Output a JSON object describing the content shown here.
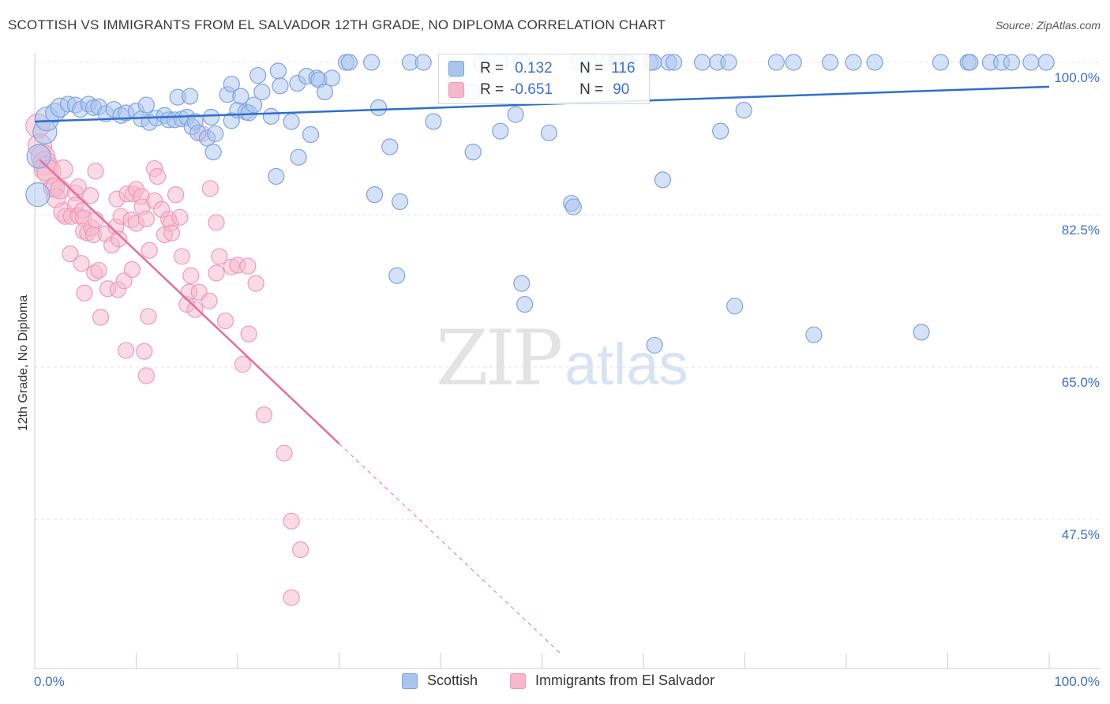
{
  "header": {
    "title": "SCOTTISH VS IMMIGRANTS FROM EL SALVADOR 12TH GRADE, NO DIPLOMA CORRELATION CHART",
    "source": "Source: ZipAtlas.com"
  },
  "watermark": {
    "zip": "ZIP",
    "atlas": "atlas"
  },
  "legend": {
    "r_label": "R =",
    "n_label": "N =",
    "scottish": {
      "r": "0.132",
      "n": "116"
    },
    "elsalvador": {
      "r": "-0.651",
      "n": "90"
    }
  },
  "colors": {
    "scottish_fill": "#a9c4ef",
    "scottish_stroke": "#7ea3e0",
    "scottish_line": "#2f6fca",
    "elsalvador_fill": "#f6b8cb",
    "elsalvador_stroke": "#ee9ab5",
    "elsalvador_line": "#e4709a",
    "axis_label": "#3b6fcf"
  },
  "chart_data": {
    "type": "scatter",
    "title": "SCOTTISH VS IMMIGRANTS FROM EL SALVADOR 12TH GRADE, NO DIPLOMA CORRELATION CHART",
    "xlabel": "",
    "ylabel": "12th Grade, No Diploma",
    "xlim": [
      0,
      100
    ],
    "ylim": [
      30,
      102
    ],
    "x_tick_labels": [
      "0.0%",
      "100.0%"
    ],
    "y_ticks": [
      100,
      82.5,
      65,
      47.5
    ],
    "y_tick_labels": [
      "100.0%",
      "82.5%",
      "65.0%",
      "47.5%"
    ],
    "grid": true,
    "legend_position": "top-center",
    "series": [
      {
        "name": "Scottish",
        "r": 0.132,
        "n": 116,
        "trend": {
          "x": [
            0,
            100
          ],
          "y": [
            93.2,
            97.2
          ]
        },
        "points": [
          [
            0.3,
            84.8
          ],
          [
            0.4,
            89.2
          ],
          [
            1.0,
            92.0
          ],
          [
            1.2,
            93.5
          ],
          [
            2.0,
            94.2
          ],
          [
            2.5,
            94.8
          ],
          [
            3.3,
            95.2
          ],
          [
            4.0,
            95.1
          ],
          [
            4.5,
            94.6
          ],
          [
            5.3,
            95.2
          ],
          [
            5.8,
            94.8
          ],
          [
            6.3,
            94.9
          ],
          [
            7.0,
            94.1
          ],
          [
            7.8,
            94.6
          ],
          [
            8.5,
            93.9
          ],
          [
            9.0,
            94.2
          ],
          [
            10.0,
            94.4
          ],
          [
            10.5,
            93.5
          ],
          [
            11.0,
            95.1
          ],
          [
            11.3,
            93.1
          ],
          [
            12.0,
            93.6
          ],
          [
            12.8,
            93.9
          ],
          [
            13.2,
            93.4
          ],
          [
            13.8,
            93.4
          ],
          [
            14.5,
            93.5
          ],
          [
            15.0,
            93.7
          ],
          [
            14.1,
            96.0
          ],
          [
            15.3,
            96.1
          ],
          [
            15.5,
            92.6
          ],
          [
            15.8,
            93.2
          ],
          [
            16.1,
            91.9
          ],
          [
            17.0,
            91.3
          ],
          [
            17.4,
            93.7
          ],
          [
            17.6,
            89.7
          ],
          [
            17.8,
            91.8
          ],
          [
            19.0,
            96.3
          ],
          [
            19.4,
            93.3
          ],
          [
            19.4,
            97.5
          ],
          [
            20.0,
            94.5
          ],
          [
            20.3,
            96.1
          ],
          [
            20.8,
            94.3
          ],
          [
            21.1,
            94.2
          ],
          [
            21.6,
            95.1
          ],
          [
            22.0,
            98.5
          ],
          [
            22.4,
            96.6
          ],
          [
            23.3,
            93.8
          ],
          [
            23.8,
            86.9
          ],
          [
            24.0,
            99.0
          ],
          [
            24.2,
            97.3
          ],
          [
            25.3,
            93.2
          ],
          [
            25.9,
            97.6
          ],
          [
            26.0,
            89.1
          ],
          [
            26.8,
            98.4
          ],
          [
            27.2,
            91.7
          ],
          [
            27.8,
            98.2
          ],
          [
            28.0,
            98.0
          ],
          [
            28.6,
            96.6
          ],
          [
            29.3,
            98.2
          ],
          [
            30.7,
            100.0
          ],
          [
            31.0,
            100.0
          ],
          [
            33.2,
            100.0
          ],
          [
            33.5,
            84.8
          ],
          [
            33.9,
            94.8
          ],
          [
            35.0,
            90.3
          ],
          [
            36.0,
            84.0
          ],
          [
            37.0,
            100.0
          ],
          [
            38.3,
            100.0
          ],
          [
            39.3,
            93.2
          ],
          [
            35.7,
            75.5
          ],
          [
            41.4,
            97.5
          ],
          [
            43.1,
            96.6
          ],
          [
            43.2,
            89.7
          ],
          [
            44.0,
            100.0
          ],
          [
            45.9,
            92.1
          ],
          [
            45.9,
            100.0
          ],
          [
            47.4,
            94.0
          ],
          [
            48.0,
            100.0
          ],
          [
            48.0,
            74.6
          ],
          [
            48.3,
            72.2
          ],
          [
            50.7,
            91.9
          ],
          [
            52.9,
            83.8
          ],
          [
            53.1,
            83.4
          ],
          [
            53.6,
            100.0
          ],
          [
            54.7,
            100.0
          ],
          [
            56.5,
            100.0
          ],
          [
            57.5,
            100.0
          ],
          [
            58.4,
            100.0
          ],
          [
            60.7,
            100.0
          ],
          [
            61.0,
            100.0
          ],
          [
            61.1,
            67.5
          ],
          [
            61.9,
            86.5
          ],
          [
            62.5,
            100.0
          ],
          [
            63.0,
            100.0
          ],
          [
            65.8,
            100.0
          ],
          [
            67.3,
            100.0
          ],
          [
            67.6,
            92.1
          ],
          [
            68.4,
            100.0
          ],
          [
            69.0,
            72.0
          ],
          [
            69.9,
            94.5
          ],
          [
            73.1,
            100.0
          ],
          [
            74.8,
            100.0
          ],
          [
            76.8,
            68.7
          ],
          [
            78.4,
            100.0
          ],
          [
            80.7,
            100.0
          ],
          [
            82.8,
            100.0
          ],
          [
            87.4,
            69.0
          ],
          [
            89.3,
            100.0
          ],
          [
            92.0,
            100.0
          ],
          [
            92.2,
            100.0
          ],
          [
            94.2,
            100.0
          ],
          [
            95.3,
            100.0
          ],
          [
            96.3,
            100.0
          ],
          [
            98.2,
            100.0
          ],
          [
            99.7,
            100.0
          ]
        ]
      },
      {
        "name": "Immigrants from El Salvador",
        "r": -0.651,
        "n": 90,
        "trend": {
          "x": [
            0.5,
            30.0
          ],
          "y": [
            88.8,
            56.2
          ]
        },
        "trend_dashed": {
          "x": [
            30.0,
            52.0
          ],
          "y": [
            56.2,
            31.9
          ]
        },
        "points": [
          [
            0.3,
            92.7
          ],
          [
            0.5,
            90.4
          ],
          [
            0.8,
            89.2
          ],
          [
            1.0,
            88.4
          ],
          [
            1.1,
            87.8
          ],
          [
            1.4,
            87.4
          ],
          [
            1.8,
            85.6
          ],
          [
            2.0,
            85.6
          ],
          [
            2.1,
            84.4
          ],
          [
            2.5,
            85.4
          ],
          [
            2.8,
            82.8
          ],
          [
            2.8,
            87.7
          ],
          [
            3.0,
            82.3
          ],
          [
            3.5,
            78.0
          ],
          [
            3.6,
            82.3
          ],
          [
            4.0,
            85.0
          ],
          [
            4.0,
            83.6
          ],
          [
            4.3,
            85.7
          ],
          [
            4.3,
            82.4
          ],
          [
            4.6,
            76.9
          ],
          [
            4.7,
            83.0
          ],
          [
            4.8,
            82.1
          ],
          [
            4.8,
            80.6
          ],
          [
            4.9,
            73.5
          ],
          [
            5.2,
            80.4
          ],
          [
            5.5,
            84.7
          ],
          [
            5.6,
            81.0
          ],
          [
            5.8,
            80.2
          ],
          [
            5.9,
            75.8
          ],
          [
            6.0,
            81.9
          ],
          [
            6.0,
            87.5
          ],
          [
            6.3,
            76.1
          ],
          [
            6.5,
            70.7
          ],
          [
            7.0,
            80.3
          ],
          [
            7.2,
            74.0
          ],
          [
            7.6,
            79.0
          ],
          [
            8.0,
            81.1
          ],
          [
            8.1,
            84.3
          ],
          [
            8.2,
            73.9
          ],
          [
            8.3,
            79.7
          ],
          [
            8.5,
            82.3
          ],
          [
            8.8,
            74.9
          ],
          [
            9.0,
            66.9
          ],
          [
            9.1,
            84.9
          ],
          [
            9.5,
            81.9
          ],
          [
            9.6,
            76.2
          ],
          [
            9.7,
            84.9
          ],
          [
            10.0,
            81.5
          ],
          [
            10.0,
            85.4
          ],
          [
            10.5,
            84.6
          ],
          [
            10.6,
            83.4
          ],
          [
            10.8,
            66.8
          ],
          [
            11.0,
            64.0
          ],
          [
            11.0,
            82.0
          ],
          [
            11.2,
            70.8
          ],
          [
            11.3,
            78.4
          ],
          [
            11.8,
            84.1
          ],
          [
            11.8,
            87.8
          ],
          [
            12.1,
            86.9
          ],
          [
            12.5,
            83.1
          ],
          [
            12.8,
            80.2
          ],
          [
            13.2,
            82.0
          ],
          [
            13.4,
            81.5
          ],
          [
            13.5,
            80.4
          ],
          [
            13.9,
            84.8
          ],
          [
            14.3,
            82.2
          ],
          [
            14.5,
            77.7
          ],
          [
            15.0,
            72.2
          ],
          [
            15.2,
            73.6
          ],
          [
            15.4,
            75.5
          ],
          [
            15.8,
            71.6
          ],
          [
            16.2,
            73.6
          ],
          [
            16.5,
            91.8
          ],
          [
            17.2,
            72.6
          ],
          [
            17.3,
            85.5
          ],
          [
            17.9,
            75.8
          ],
          [
            17.9,
            81.6
          ],
          [
            18.2,
            77.7
          ],
          [
            18.8,
            70.3
          ],
          [
            19.4,
            76.5
          ],
          [
            20.0,
            76.7
          ],
          [
            20.5,
            65.3
          ],
          [
            21.0,
            76.6
          ],
          [
            21.1,
            68.8
          ],
          [
            21.8,
            74.6
          ],
          [
            22.6,
            59.5
          ],
          [
            24.6,
            55.1
          ],
          [
            25.3,
            47.3
          ],
          [
            25.3,
            38.5
          ],
          [
            26.2,
            44.0
          ]
        ]
      }
    ]
  }
}
